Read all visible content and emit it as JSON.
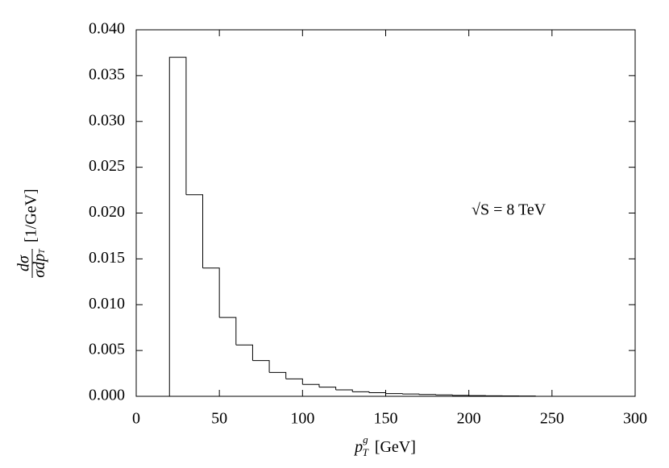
{
  "chart_data": {
    "type": "histogram",
    "x_label": {
      "base": "p",
      "sup": "g",
      "sub": "T",
      "unit": "[GeV]"
    },
    "y_label": {
      "numerator": "dσ",
      "denominator": "σdp",
      "denominator_sub": "T",
      "unit": "[1/GeV]"
    },
    "annotation": "√S = 8 TeV",
    "bins": [
      20,
      30,
      40,
      50,
      60,
      70,
      80,
      90,
      100,
      110,
      120,
      130,
      140,
      150,
      160,
      170,
      180,
      190,
      200,
      210,
      220,
      230,
      240
    ],
    "values": [
      0.037,
      0.022,
      0.014,
      0.0086,
      0.0056,
      0.0039,
      0.0026,
      0.0019,
      0.0013,
      0.001,
      0.0007,
      0.0005,
      0.0004,
      0.0003,
      0.00025,
      0.0002,
      0.00015,
      0.0001,
      8e-05,
      6e-05,
      4e-05,
      3e-05
    ],
    "color": "#000000",
    "xlim": [
      0,
      300
    ],
    "xticks": [
      0,
      50,
      100,
      150,
      200,
      250,
      300
    ],
    "ylim": [
      0,
      0.04
    ],
    "yticks": [
      {
        "value": 0,
        "label": "0.000"
      },
      {
        "value": 0.005,
        "label": "0.005"
      },
      {
        "value": 0.01,
        "label": "0.010"
      },
      {
        "value": 0.015,
        "label": "0.015"
      },
      {
        "value": 0.02,
        "label": "0.020"
      },
      {
        "value": 0.025,
        "label": "0.025"
      },
      {
        "value": 0.03,
        "label": "0.030"
      },
      {
        "value": 0.035,
        "label": "0.035"
      },
      {
        "value": 0.04,
        "label": "0.040"
      }
    ]
  }
}
